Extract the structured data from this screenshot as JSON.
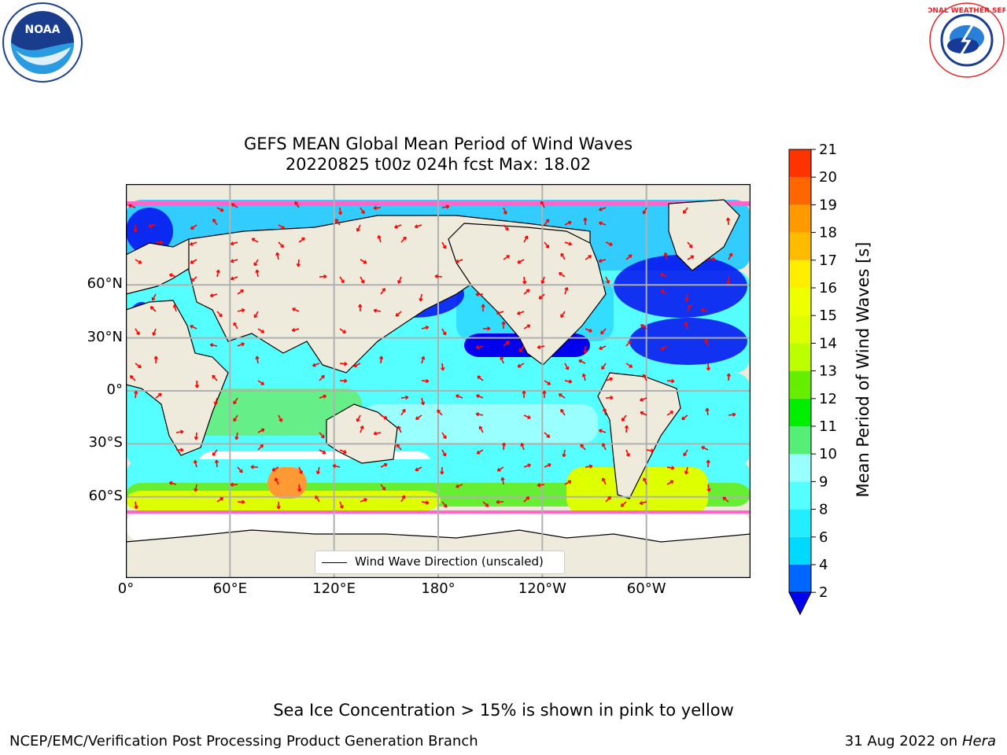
{
  "title": {
    "line1": "GEFS MEAN Global Mean Period of Wind Waves",
    "line2": "20220825 t00z 024h fcst   Max: 18.02"
  },
  "colorbar": {
    "label": "Mean Period of Wind Waves [s]",
    "ticks": [
      "2",
      "4",
      "6",
      "8",
      "9",
      "10",
      "11",
      "12",
      "13",
      "14",
      "15",
      "16",
      "17",
      "18",
      "19",
      "20",
      "21"
    ],
    "colors": [
      "#0066ff",
      "#00d9ff",
      "#22eeff",
      "#55ffff",
      "#99ffff",
      "#55ee77",
      "#00ee00",
      "#66ee00",
      "#bbff00",
      "#ddff00",
      "#eeff00",
      "#ffee00",
      "#ffbb00",
      "#ff9900",
      "#ff6600",
      "#ff3300",
      "#ff0000"
    ],
    "extend_color": "#0000ee"
  },
  "axes": {
    "x_ticks": [
      "0°",
      "60°E",
      "120°E",
      "180°",
      "120°W",
      "60°W"
    ],
    "y_ticks": [
      "60°N",
      "30°N",
      "0°",
      "30°S",
      "60°S"
    ]
  },
  "legend": {
    "label": "Wind Wave Direction (unscaled)"
  },
  "ice_note": "Sea Ice Concentration > 15% is shown in pink to yellow",
  "footer": {
    "left": "NCEP/EMC/Verification Post Processing Product Generation Branch",
    "right_date": "31 Aug 2022 on",
    "right_machine": "Hera"
  },
  "logos": {
    "left": "NOAA",
    "right": "NATIONAL WEATHER SERVICE"
  },
  "colors": {
    "land": "#efebdc",
    "ocean_low": "#0000ee",
    "grid": "#b0b0b0",
    "arrow": "#ff0000"
  }
}
